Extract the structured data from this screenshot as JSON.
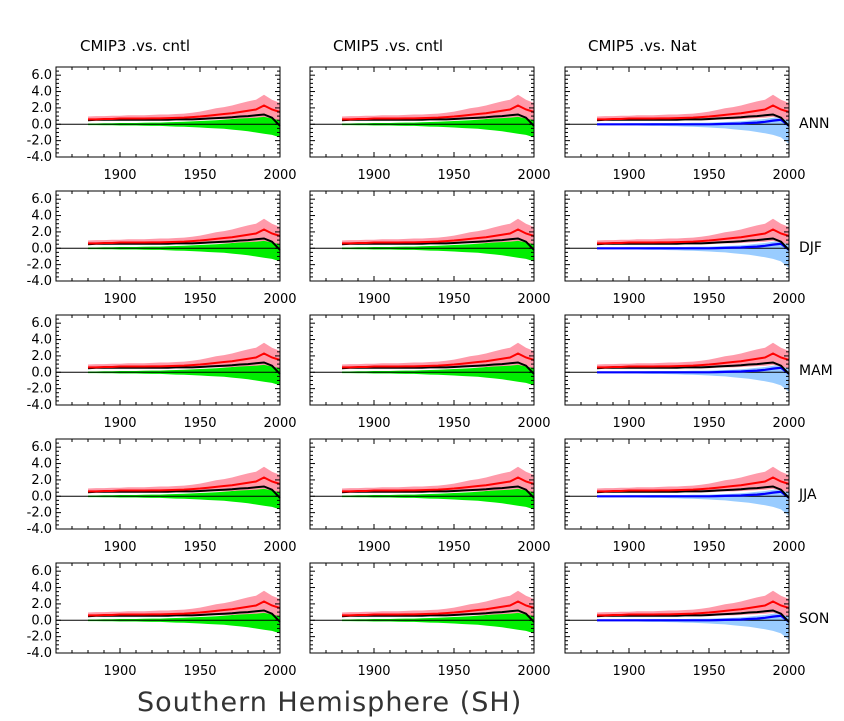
{
  "figure": {
    "title": "Southern Hemisphere (SH)",
    "columns": [
      "CMIP3 .vs. cntl",
      "CMIP5 .vs. cntl",
      "CMIP5 .vs. Nat"
    ],
    "rows": [
      "ANN",
      "DJF",
      "MAM",
      "JJA",
      "SON"
    ]
  },
  "colors": {
    "obs_line": "#ff0000",
    "obs_band": "#ff9aaa",
    "model_line": "#000000",
    "cntl_band": "#00ee00",
    "nat_band": "#99ccff",
    "nat_line": "#0000ff",
    "overlap": "#cc88ff"
  },
  "chart_data": {
    "type": "line",
    "layout": "5x3 panel grid",
    "xlim": [
      1860,
      2000
    ],
    "ylim": [
      -4.0,
      7.0
    ],
    "x_ticks": [
      1900,
      1950,
      2000
    ],
    "y_ticks": [
      "6.0",
      "4.0",
      "2.0",
      "0.0",
      "-2.0",
      "-4.0"
    ],
    "x": [
      1880,
      1885,
      1890,
      1895,
      1900,
      1905,
      1910,
      1915,
      1920,
      1925,
      1930,
      1935,
      1940,
      1945,
      1950,
      1955,
      1960,
      1965,
      1970,
      1975,
      1980,
      1985,
      1990,
      1995,
      2000
    ],
    "series": [
      {
        "values": [
          0.6,
          0.6,
          0.65,
          0.65,
          0.7,
          0.7,
          0.7,
          0.7,
          0.72,
          0.72,
          0.75,
          0.78,
          0.82,
          0.88,
          0.95,
          1.05,
          1.15,
          1.25,
          1.35,
          1.5,
          1.65,
          1.8,
          2.3,
          1.8,
          1.5
        ]
      },
      {
        "values": [
          0.95,
          1.0,
          1.0,
          1.05,
          1.05,
          1.1,
          1.1,
          1.1,
          1.15,
          1.2,
          1.2,
          1.25,
          1.3,
          1.4,
          1.55,
          1.75,
          1.95,
          2.1,
          2.3,
          2.55,
          2.8,
          3.0,
          3.6,
          3.0,
          2.6
        ]
      },
      {
        "values": [
          0.4,
          0.45,
          0.45,
          0.5,
          0.5,
          0.5,
          0.5,
          0.5,
          0.5,
          0.5,
          0.5,
          0.5,
          0.5,
          0.5,
          0.5,
          0.55,
          0.6,
          0.6,
          0.65,
          0.7,
          0.75,
          0.8,
          0.9,
          0.7,
          0.5
        ]
      },
      {
        "values": [
          0.5,
          0.55,
          0.55,
          0.55,
          0.55,
          0.55,
          0.55,
          0.55,
          0.55,
          0.55,
          0.55,
          0.6,
          0.6,
          0.6,
          0.65,
          0.7,
          0.75,
          0.8,
          0.85,
          0.95,
          1.0,
          1.1,
          1.2,
          0.8,
          -0.2
        ]
      },
      {
        "values": [
          0.1,
          0.1,
          0.12,
          0.12,
          0.15,
          0.15,
          0.15,
          0.18,
          0.2,
          0.2,
          0.25,
          0.28,
          0.3,
          0.35,
          0.4,
          0.45,
          0.5,
          0.55,
          0.65,
          0.75,
          0.85,
          1.0,
          1.15,
          1.3,
          1.5
        ]
      },
      {
        "values": [
          -0.1,
          -0.1,
          -0.12,
          -0.12,
          -0.15,
          -0.15,
          -0.15,
          -0.18,
          -0.2,
          -0.2,
          -0.25,
          -0.28,
          -0.3,
          -0.35,
          -0.4,
          -0.45,
          -0.5,
          -0.55,
          -0.65,
          -0.75,
          -0.85,
          -1.0,
          -1.15,
          -1.3,
          -1.6
        ]
      },
      {
        "values": [
          0.1,
          0.1,
          0.1,
          0.1,
          0.12,
          0.12,
          0.12,
          0.15,
          0.15,
          0.15,
          0.15,
          0.15,
          0.18,
          0.18,
          0.2,
          0.25,
          0.28,
          0.32,
          0.38,
          0.45,
          0.55,
          0.65,
          0.8,
          0.9,
          1.0
        ]
      },
      {
        "values": [
          -0.1,
          -0.1,
          -0.12,
          -0.12,
          -0.15,
          -0.15,
          -0.18,
          -0.2,
          -0.2,
          -0.22,
          -0.25,
          -0.28,
          -0.3,
          -0.35,
          -0.4,
          -0.45,
          -0.5,
          -0.6,
          -0.7,
          -0.8,
          -0.95,
          -1.1,
          -1.3,
          -1.6,
          -2.4
        ]
      },
      {
        "values": [
          0.0,
          0.0,
          0.0,
          0.0,
          0.0,
          0.0,
          0.0,
          0.0,
          0.0,
          0.0,
          0.0,
          0.0,
          0.0,
          0.0,
          0.0,
          0.02,
          0.05,
          0.08,
          0.1,
          0.15,
          0.2,
          0.3,
          0.45,
          0.55,
          -0.2
        ]
      }
    ]
  }
}
